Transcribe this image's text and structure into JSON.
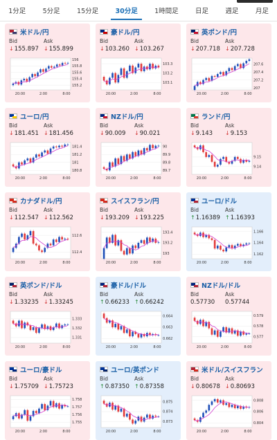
{
  "tabs": [
    {
      "label": "1分足",
      "active": false
    },
    {
      "label": "5分足",
      "active": false
    },
    {
      "label": "15分足",
      "active": false
    },
    {
      "label": "30分足",
      "active": true
    },
    {
      "label": "1時間足",
      "active": false
    },
    {
      "label": "日足",
      "active": false
    },
    {
      "label": "週足",
      "active": false
    },
    {
      "label": "月足",
      "active": false
    }
  ],
  "labels": {
    "bid": "Bid",
    "ask": "Ask"
  },
  "colors": {
    "up_candle": "#1f4fb8",
    "down_candle": "#e23b3b",
    "moving_average": "#d23bd0",
    "bid_down": "#d03030",
    "bid_up": "#2a8a3a"
  },
  "cards": [
    {
      "pair": "米ドル/円",
      "theme": "pink",
      "flag": [
        "#b22234",
        "#3c3b6e"
      ],
      "bid": "155.897",
      "ask": "155.899",
      "bid_dir": "down",
      "ask_dir": "down",
      "chart_data": {
        "type": "candlestick",
        "x_ticks": [
          "20:00",
          "2:00",
          "8:00"
        ],
        "y_ticks": [
          "155.2",
          "155.4",
          "155.6",
          "155.8",
          "156"
        ],
        "ylim": [
          155.05,
          156.05
        ],
        "close": [
          155.25,
          155.3,
          155.22,
          155.35,
          155.4,
          155.32,
          155.45,
          155.55,
          155.48,
          155.6,
          155.7,
          155.62,
          155.72,
          155.8,
          155.75,
          155.78,
          155.85,
          155.82,
          155.9,
          155.88,
          155.9
        ]
      }
    },
    {
      "pair": "豪ドル/円",
      "theme": "pink",
      "flag": [
        "#00247d",
        "#cc0000"
      ],
      "bid": "103.260",
      "ask": "103.267",
      "bid_dir": "down",
      "ask_dir": "down",
      "chart_data": {
        "type": "candlestick",
        "x_ticks": [
          "20:00",
          "2:00",
          "8:00"
        ],
        "y_ticks": [
          "103.1",
          "103.2",
          "103.3"
        ],
        "ylim": [
          103.02,
          103.36
        ],
        "close": [
          103.12,
          103.08,
          103.15,
          103.2,
          103.1,
          103.18,
          103.25,
          103.15,
          103.22,
          103.28,
          103.2,
          103.26,
          103.3,
          103.22,
          103.27,
          103.24,
          103.3,
          103.25,
          103.28,
          103.26
        ]
      }
    },
    {
      "pair": "英ポンド/円",
      "theme": "pink",
      "flag": [
        "#012169",
        "#c8102e"
      ],
      "bid": "207.718",
      "ask": "207.728",
      "bid_dir": "down",
      "ask_dir": "down",
      "chart_data": {
        "type": "candlestick",
        "x_ticks": [
          "20:00",
          "2:00",
          "8:00"
        ],
        "y_ticks": [
          "207",
          "207.2",
          "207.4",
          "207.6"
        ],
        "ylim": [
          206.95,
          207.75
        ],
        "close": [
          207.05,
          207.15,
          207.1,
          207.2,
          207.25,
          207.18,
          207.3,
          207.28,
          207.35,
          207.4,
          207.32,
          207.42,
          207.5,
          207.45,
          207.55,
          207.6,
          207.5,
          207.62,
          207.68,
          207.72
        ]
      }
    },
    {
      "pair": "ユーロ/円",
      "theme": "pink",
      "flag": [
        "#003399",
        "#ffcc00"
      ],
      "bid": "181.451",
      "ask": "181.456",
      "bid_dir": "down",
      "ask_dir": "down",
      "chart_data": {
        "type": "candlestick",
        "x_ticks": [
          "20:00",
          "2:00",
          "8:00"
        ],
        "y_ticks": [
          "180.8",
          "181",
          "181.2",
          "181.4"
        ],
        "ylim": [
          180.7,
          181.5
        ],
        "close": [
          180.9,
          180.85,
          181.0,
          180.95,
          181.05,
          181.1,
          181.0,
          181.12,
          181.2,
          181.15,
          181.25,
          181.3,
          181.22,
          181.35,
          181.4,
          181.38,
          181.42,
          181.4,
          181.45,
          181.45
        ]
      }
    },
    {
      "pair": "NZドル/円",
      "theme": "pink",
      "flag": [
        "#00247d",
        "#cc142b"
      ],
      "bid": "90.009",
      "ask": "90.021",
      "bid_dir": "down",
      "ask_dir": "down",
      "chart_data": {
        "type": "candlestick",
        "x_ticks": [
          "20:00",
          "2:00",
          "8:00"
        ],
        "y_ticks": [
          "89.7",
          "89.8",
          "89.9",
          "90"
        ],
        "ylim": [
          89.65,
          90.05
        ],
        "close": [
          89.72,
          89.7,
          89.8,
          89.75,
          89.85,
          89.78,
          89.88,
          89.82,
          89.9,
          89.85,
          89.93,
          89.88,
          89.95,
          89.9,
          89.98,
          89.95,
          90.02,
          89.98,
          90.01,
          90.01
        ]
      }
    },
    {
      "pair": "ランド/円",
      "theme": "pink",
      "flag": [
        "#007749",
        "#de3831"
      ],
      "bid": "9.143",
      "ask": "9.153",
      "bid_dir": "down",
      "ask_dir": "down",
      "chart_data": {
        "type": "candlestick",
        "x_ticks": [
          "20:00",
          "2:00",
          "8:00"
        ],
        "y_ticks": [
          "9.14",
          "9.15"
        ],
        "ylim": [
          9.132,
          9.165
        ],
        "close": [
          9.16,
          9.158,
          9.162,
          9.155,
          9.15,
          9.152,
          9.145,
          9.14,
          9.142,
          9.148,
          9.15,
          9.145,
          9.143,
          9.146,
          9.15,
          9.148,
          9.144,
          9.147,
          9.145,
          9.146
        ]
      }
    },
    {
      "pair": "カナダドル/円",
      "theme": "pink",
      "flag": [
        "#d52b1e",
        "#d52b1e"
      ],
      "bid": "112.547",
      "ask": "112.562",
      "bid_dir": "down",
      "ask_dir": "down",
      "chart_data": {
        "type": "candlestick",
        "x_ticks": [
          "20:00",
          "2:00",
          "8:00"
        ],
        "y_ticks": [
          "112.4",
          "112.6"
        ],
        "ylim": [
          112.32,
          112.7
        ],
        "close": [
          112.45,
          112.5,
          112.58,
          112.62,
          112.55,
          112.6,
          112.65,
          112.5,
          112.48,
          112.42,
          112.4,
          112.45,
          112.5,
          112.48,
          112.55,
          112.52,
          112.58,
          112.55,
          112.56,
          112.55
        ]
      }
    },
    {
      "pair": "スイスフラン/円",
      "theme": "pink",
      "flag": [
        "#d52b1e",
        "#d52b1e"
      ],
      "bid": "193.209",
      "ask": "193.225",
      "bid_dir": "down",
      "ask_dir": "down",
      "chart_data": {
        "type": "candlestick",
        "x_ticks": [
          "20:00",
          "2:00",
          "8:00"
        ],
        "y_ticks": [
          "193",
          "193.2",
          "193.4"
        ],
        "ylim": [
          192.9,
          193.5
        ],
        "close": [
          193.1,
          193.3,
          193.2,
          193.35,
          193.15,
          193.25,
          193.05,
          192.98,
          193.1,
          193.0,
          193.15,
          193.1,
          193.2,
          193.25,
          193.18,
          193.3,
          193.22,
          193.28,
          193.2,
          193.21
        ]
      }
    },
    {
      "pair": "ユーロ/ドル",
      "theme": "blue",
      "flag": [
        "#003399",
        "#b22234"
      ],
      "bid": "1.16389",
      "ask": "1.16393",
      "bid_dir": "up",
      "ask_dir": "up",
      "chart_data": {
        "type": "candlestick",
        "x_ticks": [
          "20:00",
          "2:00",
          "8:00"
        ],
        "y_ticks": [
          "1.162",
          "1.164",
          "1.166"
        ],
        "ylim": [
          1.1612,
          1.1668
        ],
        "close": [
          1.1655,
          1.1652,
          1.1658,
          1.165,
          1.1654,
          1.1648,
          1.1645,
          1.163,
          1.1635,
          1.1628,
          1.1625,
          1.1632,
          1.1636,
          1.163,
          1.1635,
          1.1638,
          1.1634,
          1.1637,
          1.1639,
          1.1639
        ]
      }
    },
    {
      "pair": "英ポンド/ドル",
      "theme": "pink",
      "flag": [
        "#012169",
        "#b22234"
      ],
      "bid": "1.33235",
      "ask": "1.33245",
      "bid_dir": "down",
      "ask_dir": "down",
      "chart_data": {
        "type": "candlestick",
        "x_ticks": [
          "20:00",
          "2:00",
          "8:00"
        ],
        "y_ticks": [
          "1.331",
          "1.332",
          "1.333"
        ],
        "ylim": [
          1.3304,
          1.3338
        ],
        "close": [
          1.3325,
          1.3322,
          1.3328,
          1.332,
          1.3326,
          1.3323,
          1.3318,
          1.3321,
          1.3315,
          1.332,
          1.3324,
          1.3319,
          1.3322,
          1.3318,
          1.3321,
          1.3325,
          1.332,
          1.3323,
          1.3324,
          1.3324
        ]
      }
    },
    {
      "pair": "豪ドル/ドル",
      "theme": "blue",
      "flag": [
        "#00247d",
        "#b22234"
      ],
      "bid": "0.66233",
      "ask": "0.66242",
      "bid_dir": "up",
      "ask_dir": "up",
      "chart_data": {
        "type": "candlestick",
        "x_ticks": [
          "20:00",
          "2:00",
          "8:00"
        ],
        "y_ticks": [
          "0.662",
          "0.663",
          "0.664"
        ],
        "ylim": [
          0.6616,
          0.6644
        ],
        "close": [
          0.6638,
          0.6634,
          0.6636,
          0.663,
          0.6633,
          0.6628,
          0.6631,
          0.6625,
          0.6628,
          0.6622,
          0.6626,
          0.6624,
          0.6621,
          0.6624,
          0.6622,
          0.6625,
          0.6623,
          0.6624,
          0.6623,
          0.6623
        ]
      }
    },
    {
      "pair": "NZドル/ドル",
      "theme": "pink",
      "flag": [
        "#00247d",
        "#b22234"
      ],
      "bid": "0.57730",
      "ask": "0.57744",
      "bid_dir": "none",
      "ask_dir": "none",
      "chart_data": {
        "type": "candlestick",
        "x_ticks": [
          "20:00",
          "2:00",
          "8:00"
        ],
        "y_ticks": [
          "0.577",
          "0.578",
          "0.579"
        ],
        "ylim": [
          0.5764,
          0.5794
        ],
        "close": [
          0.5785,
          0.5782,
          0.5786,
          0.578,
          0.5784,
          0.5778,
          0.5772,
          0.5776,
          0.577,
          0.5775,
          0.5779,
          0.5774,
          0.5778,
          0.5773,
          0.5776,
          0.5771,
          0.5775,
          0.5772,
          0.5773,
          0.5773
        ]
      }
    },
    {
      "pair": "ユーロ/豪ドル",
      "theme": "pink",
      "flag": [
        "#003399",
        "#00247d"
      ],
      "bid": "1.75709",
      "ask": "1.75723",
      "bid_dir": "down",
      "ask_dir": "down",
      "chart_data": {
        "type": "candlestick",
        "x_ticks": [
          "20:00",
          "2:00",
          "8:00"
        ],
        "y_ticks": [
          "1.755",
          "1.756",
          "1.757",
          "1.758"
        ],
        "ylim": [
          1.7543,
          1.7585
        ],
        "close": [
          1.7558,
          1.7562,
          1.7555,
          1.756,
          1.7566,
          1.7552,
          1.7558,
          1.7565,
          1.7562,
          1.7568,
          1.7574,
          1.7566,
          1.7572,
          1.7578,
          1.757,
          1.7575,
          1.7568,
          1.7573,
          1.7571,
          1.7571
        ]
      }
    },
    {
      "pair": "ユーロ/英ポンド",
      "theme": "blue",
      "flag": [
        "#003399",
        "#012169"
      ],
      "bid": "0.87350",
      "ask": "0.87358",
      "bid_dir": "up",
      "ask_dir": "up",
      "chart_data": {
        "type": "candlestick",
        "x_ticks": [
          "20:00",
          "2:00",
          "8:00"
        ],
        "y_ticks": [
          "0.873",
          "0.874",
          "0.875"
        ],
        "ylim": [
          0.8724,
          0.8756
        ],
        "close": [
          0.8748,
          0.8745,
          0.8749,
          0.8742,
          0.8746,
          0.874,
          0.8743,
          0.8735,
          0.8738,
          0.8732,
          0.8728,
          0.8731,
          0.8735,
          0.873,
          0.8734,
          0.8737,
          0.8733,
          0.8736,
          0.8735,
          0.8735
        ]
      }
    },
    {
      "pair": "米ドル/スイスフラン",
      "theme": "pink",
      "flag": [
        "#b22234",
        "#d52b1e"
      ],
      "bid": "0.80678",
      "ask": "0.80693",
      "bid_dir": "down",
      "ask_dir": "down",
      "chart_data": {
        "type": "candlestick",
        "x_ticks": [
          "20:00",
          "2:00",
          "8:00"
        ],
        "y_ticks": [
          "0.804",
          "0.806",
          "0.808"
        ],
        "ylim": [
          0.8032,
          0.8088
        ],
        "close": [
          0.8045,
          0.8042,
          0.805,
          0.8058,
          0.8062,
          0.8072,
          0.8078,
          0.8082,
          0.8076,
          0.808,
          0.8072,
          0.8075,
          0.8068,
          0.8072,
          0.8066,
          0.807,
          0.8065,
          0.8069,
          0.8067,
          0.8068
        ]
      }
    }
  ]
}
